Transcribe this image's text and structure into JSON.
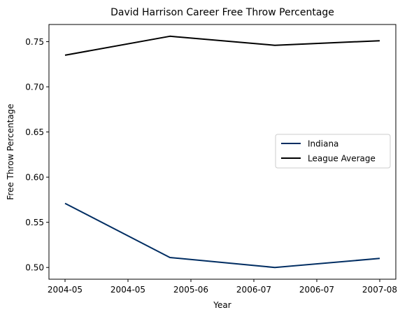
{
  "chart_data": {
    "type": "line",
    "title": "David Harrison  Career Free Throw Percentage",
    "xlabel": "Year",
    "ylabel": "Free Throw Percentage",
    "x_tick_labels": [
      "2004-05",
      "2004-05",
      "2005-06",
      "2006-07",
      "2006-07",
      "2007-08"
    ],
    "categories": [
      "2004-05",
      "2005-06",
      "2006-07",
      "2007-08"
    ],
    "ylim": [
      0.487,
      0.769
    ],
    "y_ticks": [
      0.5,
      0.55,
      0.6,
      0.65,
      0.7,
      0.75
    ],
    "y_tick_labels": [
      "0.50",
      "0.55",
      "0.60",
      "0.65",
      "0.70",
      "0.75"
    ],
    "grid": false,
    "legend_position": "center-right",
    "series": [
      {
        "name": "Indiana",
        "color": "#002d62",
        "values": [
          0.571,
          0.511,
          0.5,
          0.51
        ]
      },
      {
        "name": "League Average",
        "color": "#000000",
        "values": [
          0.735,
          0.756,
          0.746,
          0.751
        ]
      }
    ]
  }
}
